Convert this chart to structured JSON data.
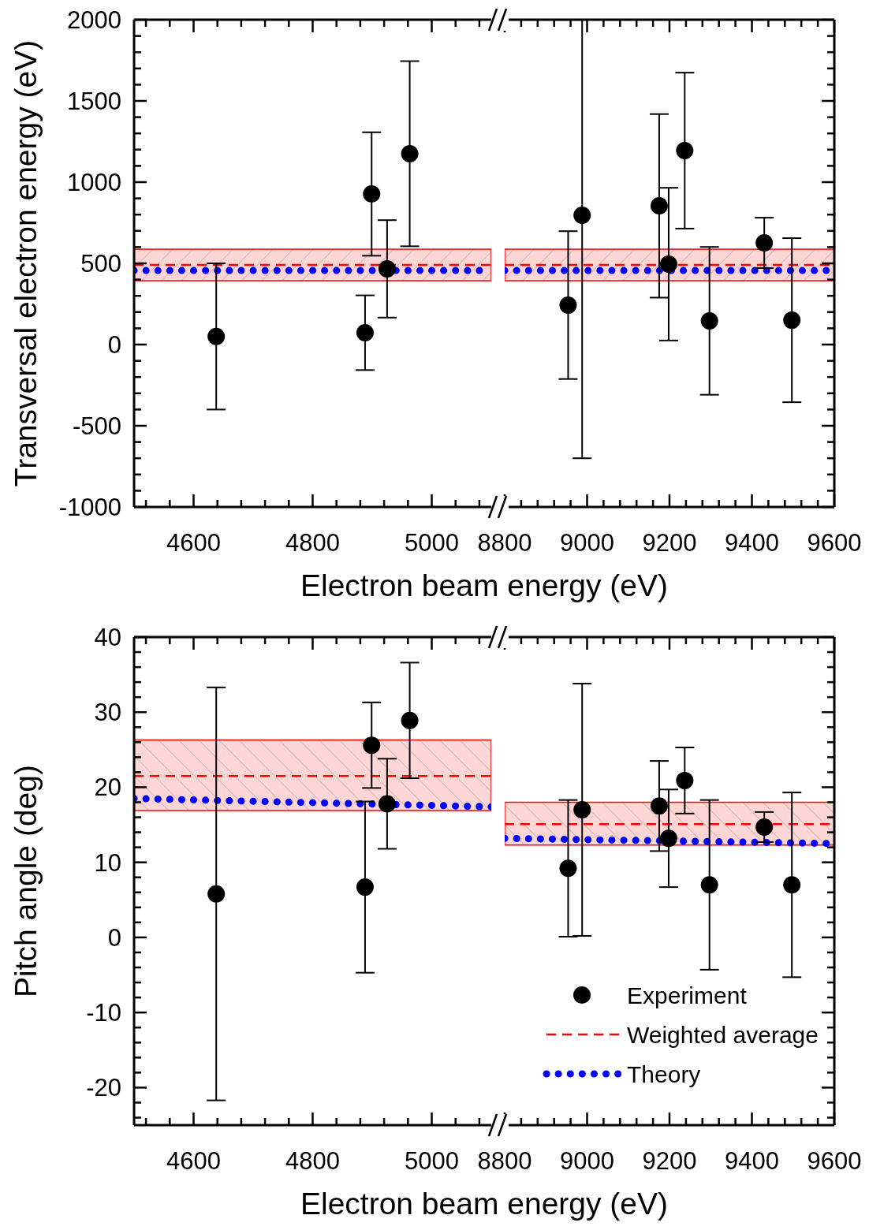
{
  "chart_data": [
    {
      "type": "scatter",
      "xlabel": "Electron beam energy (eV)",
      "ylabel": "Transversal electron energy (eV)",
      "xlim": [
        4500,
        5100
      ],
      "ylim": [
        -1000,
        2000
      ],
      "xticks": [
        {
          "value": 4520,
          "label": null
        },
        {
          "value": 4560,
          "label": null
        },
        4600,
        {
          "value": 4640,
          "label": null
        },
        {
          "value": 4680,
          "label": null
        },
        {
          "value": 4720,
          "label": null
        },
        {
          "value": 4760,
          "label": null
        },
        4800,
        {
          "value": 4840,
          "label": null
        },
        {
          "value": 4880,
          "label": null
        },
        {
          "value": 4920,
          "label": null
        },
        {
          "value": 4960,
          "label": null
        },
        5000,
        {
          "value": 5040,
          "label": null
        },
        {
          "value": 5080,
          "label": null
        }
      ],
      "yticks": [
        -1000,
        {
          "value": -900,
          "label": null
        },
        {
          "value": -800,
          "label": null
        },
        {
          "value": -700,
          "label": null
        },
        {
          "value": -600,
          "label": null
        },
        -500,
        {
          "value": -400,
          "label": null
        },
        {
          "value": -300,
          "label": null
        },
        {
          "value": -200,
          "label": null
        },
        {
          "value": -100,
          "label": null
        },
        0,
        {
          "value": 100,
          "label": null
        },
        {
          "value": 200,
          "label": null
        },
        {
          "value": 300,
          "label": null
        },
        {
          "value": 400,
          "label": null
        },
        500,
        {
          "value": 600,
          "label": null
        },
        {
          "value": 700,
          "label": null
        },
        {
          "value": 800,
          "label": null
        },
        {
          "value": 900,
          "label": null
        },
        1000,
        {
          "value": 1100,
          "label": null
        },
        {
          "value": 1200,
          "label": null
        },
        {
          "value": 1300,
          "label": null
        },
        {
          "value": 1400,
          "label": null
        },
        1500,
        {
          "value": 1600,
          "label": null
        },
        {
          "value": 1700,
          "label": null
        },
        {
          "value": 1800,
          "label": null
        },
        {
          "value": 1900,
          "label": null
        },
        2000
      ],
      "bands": [
        {
          "axis": "y",
          "from": 393,
          "to": 587,
          "color": "#ff0000"
        }
      ],
      "series": [
        {
          "color": "#000000",
          "marker": "circle",
          "x": [
            4638,
            4888,
            4899,
            4925,
            4963
          ],
          "values": [
            50,
            73,
            927,
            466,
            1175
          ],
          "errors": [
            450,
            230,
            380,
            300,
            570
          ]
        },
        {
          "type": "line",
          "color": "#ff0000",
          "line_style": "dashed",
          "x": [
            4500,
            5100
          ],
          "values": [
            490,
            490
          ]
        },
        {
          "type": "line",
          "color": "#0000ff",
          "line_style": "dotted",
          "x": [
            4500,
            5100
          ],
          "values": [
            456,
            456
          ]
        }
      ]
    },
    {
      "type": "scatter",
      "tick_labels": "x",
      "xlim": [
        8800,
        9600
      ],
      "ylim": [
        -1000,
        2000
      ],
      "xticks": [
        8800,
        {
          "value": 8840,
          "label": null
        },
        {
          "value": 8880,
          "label": null
        },
        {
          "value": 8920,
          "label": null
        },
        {
          "value": 8960,
          "label": null
        },
        9000,
        {
          "value": 9040,
          "label": null
        },
        {
          "value": 9080,
          "label": null
        },
        {
          "value": 9120,
          "label": null
        },
        {
          "value": 9160,
          "label": null
        },
        9200,
        {
          "value": 9240,
          "label": null
        },
        {
          "value": 9280,
          "label": null
        },
        {
          "value": 9320,
          "label": null
        },
        {
          "value": 9360,
          "label": null
        },
        9400,
        {
          "value": 9440,
          "label": null
        },
        {
          "value": 9480,
          "label": null
        },
        {
          "value": 9520,
          "label": null
        },
        {
          "value": 9560,
          "label": null
        },
        9600
      ],
      "yticks": [
        -1000,
        {
          "value": -900,
          "label": null
        },
        {
          "value": -800,
          "label": null
        },
        {
          "value": -700,
          "label": null
        },
        {
          "value": -600,
          "label": null
        },
        -500,
        {
          "value": -400,
          "label": null
        },
        {
          "value": -300,
          "label": null
        },
        {
          "value": -200,
          "label": null
        },
        {
          "value": -100,
          "label": null
        },
        0,
        {
          "value": 100,
          "label": null
        },
        {
          "value": 200,
          "label": null
        },
        {
          "value": 300,
          "label": null
        },
        {
          "value": 400,
          "label": null
        },
        500,
        {
          "value": 600,
          "label": null
        },
        {
          "value": 700,
          "label": null
        },
        {
          "value": 800,
          "label": null
        },
        {
          "value": 900,
          "label": null
        },
        1000,
        {
          "value": 1100,
          "label": null
        },
        {
          "value": 1200,
          "label": null
        },
        {
          "value": 1300,
          "label": null
        },
        {
          "value": 1400,
          "label": null
        },
        1500,
        {
          "value": 1600,
          "label": null
        },
        {
          "value": 1700,
          "label": null
        },
        {
          "value": 1800,
          "label": null
        },
        {
          "value": 1900,
          "label": null
        },
        2000
      ],
      "bands": [
        {
          "axis": "y",
          "from": 393,
          "to": 587,
          "color": "#ff0000"
        }
      ],
      "series": [
        {
          "color": "#000000",
          "marker": "circle",
          "x": [
            8954,
            8988,
            9175,
            9198,
            9237,
            9297,
            9430,
            9497
          ],
          "values": [
            243,
            796,
            854,
            495,
            1194,
            146,
            626,
            150
          ],
          "errors": [
            455,
            [
              -700,
              2000
            ],
            565,
            470,
            480,
            455,
            155,
            505
          ]
        },
        {
          "type": "line",
          "color": "#ff0000",
          "line_style": "dashed",
          "x": [
            8800,
            9600
          ],
          "values": [
            490,
            490
          ]
        },
        {
          "type": "line",
          "color": "#0000ff",
          "line_style": "dotted",
          "x": [
            8800,
            9600
          ],
          "values": [
            456,
            456
          ]
        }
      ]
    },
    {
      "type": "scatter",
      "xlabel": "Electron beam energy (eV)",
      "ylabel": "Pitch angle (deg)",
      "xlim": [
        4500,
        5100
      ],
      "ylim": [
        -25,
        40
      ],
      "xticks": [
        {
          "value": 4520,
          "label": null
        },
        {
          "value": 4560,
          "label": null
        },
        4600,
        {
          "value": 4640,
          "label": null
        },
        {
          "value": 4680,
          "label": null
        },
        {
          "value": 4720,
          "label": null
        },
        {
          "value": 4760,
          "label": null
        },
        4800,
        {
          "value": 4840,
          "label": null
        },
        {
          "value": 4880,
          "label": null
        },
        {
          "value": 4920,
          "label": null
        },
        {
          "value": 4960,
          "label": null
        },
        5000,
        {
          "value": 5040,
          "label": null
        },
        {
          "value": 5080,
          "label": null
        }
      ],
      "yticks": [
        {
          "value": -24,
          "label": null
        },
        {
          "value": -22,
          "label": null
        },
        -20,
        {
          "value": -18,
          "label": null
        },
        {
          "value": -16,
          "label": null
        },
        {
          "value": -14,
          "label": null
        },
        {
          "value": -12,
          "label": null
        },
        -10,
        {
          "value": -8,
          "label": null
        },
        {
          "value": -6,
          "label": null
        },
        {
          "value": -4,
          "label": null
        },
        {
          "value": -2,
          "label": null
        },
        0,
        {
          "value": 2,
          "label": null
        },
        {
          "value": 4,
          "label": null
        },
        {
          "value": 6,
          "label": null
        },
        {
          "value": 8,
          "label": null
        },
        10,
        {
          "value": 12,
          "label": null
        },
        {
          "value": 14,
          "label": null
        },
        {
          "value": 16,
          "label": null
        },
        {
          "value": 18,
          "label": null
        },
        20,
        {
          "value": 22,
          "label": null
        },
        {
          "value": 24,
          "label": null
        },
        {
          "value": 26,
          "label": null
        },
        {
          "value": 28,
          "label": null
        },
        30,
        {
          "value": 32,
          "label": null
        },
        {
          "value": 34,
          "label": null
        },
        {
          "value": 36,
          "label": null
        },
        {
          "value": 38,
          "label": null
        },
        40
      ],
      "bands": [
        {
          "axis": "y",
          "from": 16.9,
          "to": 26.3,
          "color": "#ff0000"
        }
      ],
      "series": [
        {
          "color": "#000000",
          "marker": "circle",
          "x": [
            4638,
            4888,
            4899,
            4925,
            4963
          ],
          "values": [
            5.8,
            6.7,
            25.6,
            17.8,
            28.9
          ],
          "errors": [
            27.5,
            11.4,
            5.7,
            6,
            7.7
          ]
        },
        {
          "type": "line",
          "color": "#ff0000",
          "line_style": "dashed",
          "x": [
            4500,
            5100
          ],
          "values": [
            21.5,
            21.5
          ]
        },
        {
          "type": "line",
          "color": "#0000ff",
          "line_style": "dotted",
          "x": [
            4500,
            5100
          ],
          "values": [
            18.5,
            17.4
          ]
        }
      ]
    },
    {
      "type": "scatter",
      "tick_labels": "x",
      "legend": "bottom right",
      "xlim": [
        8800,
        9600
      ],
      "ylim": [
        -25,
        40
      ],
      "xticks": [
        8800,
        {
          "value": 8840,
          "label": null
        },
        {
          "value": 8880,
          "label": null
        },
        {
          "value": 8920,
          "label": null
        },
        {
          "value": 8960,
          "label": null
        },
        9000,
        {
          "value": 9040,
          "label": null
        },
        {
          "value": 9080,
          "label": null
        },
        {
          "value": 9120,
          "label": null
        },
        {
          "value": 9160,
          "label": null
        },
        9200,
        {
          "value": 9240,
          "label": null
        },
        {
          "value": 9280,
          "label": null
        },
        {
          "value": 9320,
          "label": null
        },
        {
          "value": 9360,
          "label": null
        },
        9400,
        {
          "value": 9440,
          "label": null
        },
        {
          "value": 9480,
          "label": null
        },
        {
          "value": 9520,
          "label": null
        },
        {
          "value": 9560,
          "label": null
        },
        9600
      ],
      "yticks": [
        {
          "value": -24,
          "label": null
        },
        {
          "value": -22,
          "label": null
        },
        -20,
        {
          "value": -18,
          "label": null
        },
        {
          "value": -16,
          "label": null
        },
        {
          "value": -14,
          "label": null
        },
        {
          "value": -12,
          "label": null
        },
        -10,
        {
          "value": -8,
          "label": null
        },
        {
          "value": -6,
          "label": null
        },
        {
          "value": -4,
          "label": null
        },
        {
          "value": -2,
          "label": null
        },
        0,
        {
          "value": 2,
          "label": null
        },
        {
          "value": 4,
          "label": null
        },
        {
          "value": 6,
          "label": null
        },
        {
          "value": 8,
          "label": null
        },
        10,
        {
          "value": 12,
          "label": null
        },
        {
          "value": 14,
          "label": null
        },
        {
          "value": 16,
          "label": null
        },
        {
          "value": 18,
          "label": null
        },
        20,
        {
          "value": 22,
          "label": null
        },
        {
          "value": 24,
          "label": null
        },
        {
          "value": 26,
          "label": null
        },
        {
          "value": 28,
          "label": null
        },
        30,
        {
          "value": 32,
          "label": null
        },
        {
          "value": 34,
          "label": null
        },
        {
          "value": 36,
          "label": null
        },
        {
          "value": 38,
          "label": null
        },
        40
      ],
      "bands": [
        {
          "axis": "y",
          "from": 12.3,
          "to": 18.0,
          "color": "#ff0000"
        }
      ],
      "series": [
        {
          "name": "Experiment",
          "color": "#000000",
          "marker": "circle",
          "x": [
            8954,
            8988,
            9175,
            9198,
            9237,
            9297,
            9430,
            9497
          ],
          "values": [
            9.2,
            17.0,
            17.5,
            13.2,
            20.9,
            7.0,
            14.7,
            7.0
          ],
          "errors": [
            9.1,
            16.8,
            6,
            6.5,
            4.4,
            11.3,
            2,
            12.3
          ]
        },
        {
          "type": "line",
          "name": "Weighted average",
          "color": "#ff0000",
          "line_style": "dashed",
          "x": [
            8800,
            9600
          ],
          "values": [
            15.1,
            15.1
          ]
        },
        {
          "type": "line",
          "name": "Theory",
          "color": "#0000ff",
          "line_style": "dotted",
          "x": [
            8800,
            9600
          ],
          "values": [
            13.2,
            12.5
          ]
        }
      ]
    }
  ]
}
